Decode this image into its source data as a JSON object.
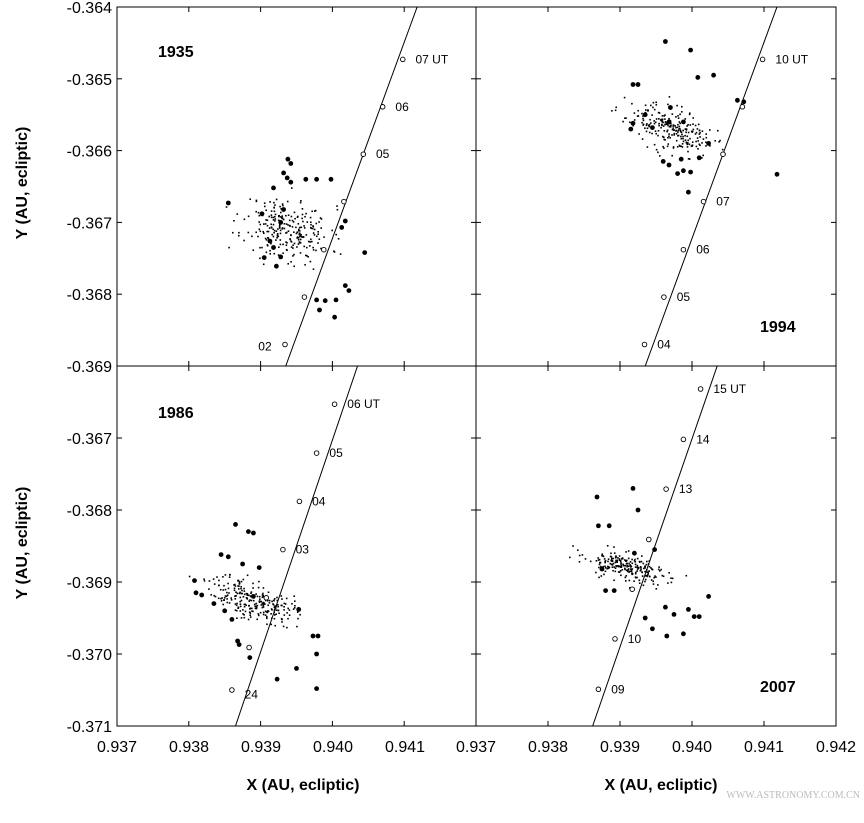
{
  "watermark": "WWW.ASTRONOMY.COM.CN",
  "x_axis": {
    "label": "X (AU, ecliptic)",
    "ticks_left": [
      "0.937",
      "0.938",
      "0.939",
      "0.940",
      "0.941"
    ],
    "ticks_right": [
      "0.937",
      "0.938",
      "0.939",
      "0.940",
      "0.941",
      "0.942"
    ]
  },
  "chart_data": [
    {
      "type": "scatter",
      "year": "1935",
      "xlim": [
        0.937,
        0.942
      ],
      "ylim": [
        -0.369,
        -0.364
      ],
      "ylabel": "Y (AU, ecliptic)",
      "yticks": [
        -0.364,
        -0.365,
        -0.366,
        -0.367,
        -0.368,
        -0.369
      ],
      "ytick_labels": [
        "-0.364",
        "-0.365",
        "-0.366",
        "-0.367",
        "-0.368",
        "-0.369"
      ],
      "track": [
        [
          0.93935,
          -0.369
        ],
        [
          0.94118,
          -0.364
        ]
      ],
      "time_marks": [
        {
          "x": 0.94098,
          "y": -0.36473,
          "label": "07 UT"
        },
        {
          "x": 0.9407,
          "y": -0.36539,
          "label": "06"
        },
        {
          "x": 0.94043,
          "y": -0.36605,
          "label": "05"
        },
        {
          "x": 0.94016,
          "y": -0.36671
        },
        {
          "x": 0.93988,
          "y": -0.36738
        },
        {
          "x": 0.93961,
          "y": -0.36804
        },
        {
          "x": 0.93934,
          "y": -0.3687,
          "label": "02"
        }
      ],
      "hour_label_dx": [
        0.00015,
        0.00015,
        0.00015,
        0,
        0,
        0,
        -0.0004
      ],
      "hour_label_dy": [
        0,
        0,
        0,
        0,
        0,
        0,
        -3e-05
      ],
      "cloud": {
        "cx": 0.93937,
        "cy": -0.3671,
        "sx": 0.0003,
        "sy": 0.00022,
        "rho": -0.2,
        "n": 260,
        "seed": 11
      },
      "particles": [
        [
          0.93855,
          -0.36673
        ],
        [
          0.93938,
          -0.36612
        ],
        [
          0.93942,
          -0.36618
        ],
        [
          0.93932,
          -0.36631
        ],
        [
          0.93937,
          -0.36638
        ],
        [
          0.93942,
          -0.36644
        ],
        [
          0.93918,
          -0.36652
        ],
        [
          0.93963,
          -0.3664
        ],
        [
          0.93978,
          -0.3664
        ],
        [
          0.93998,
          -0.3664
        ],
        [
          0.93932,
          -0.36682
        ],
        [
          0.93902,
          -0.36688
        ],
        [
          0.93928,
          -0.367
        ],
        [
          0.93913,
          -0.36726
        ],
        [
          0.93918,
          -0.36735
        ],
        [
          0.93928,
          -0.36748
        ],
        [
          0.93905,
          -0.36749
        ],
        [
          0.93922,
          -0.36761
        ],
        [
          0.94018,
          -0.36698
        ],
        [
          0.94013,
          -0.36707
        ],
        [
          0.94045,
          -0.36742
        ],
        [
          0.94018,
          -0.36788
        ],
        [
          0.94005,
          -0.36808
        ],
        [
          0.94023,
          -0.36795
        ],
        [
          0.93978,
          -0.36808
        ],
        [
          0.93982,
          -0.36822
        ],
        [
          0.94003,
          -0.36832
        ],
        [
          0.9399,
          -0.36809
        ]
      ]
    },
    {
      "type": "scatter",
      "year": "1994",
      "xlim": [
        0.937,
        0.942
      ],
      "ylim": [
        -0.369,
        -0.364
      ],
      "ylabel": "",
      "yticks": [
        -0.364,
        -0.365,
        -0.366,
        -0.367,
        -0.368,
        -0.369
      ],
      "ytick_labels": [],
      "track": [
        [
          0.93935,
          -0.369
        ],
        [
          0.94118,
          -0.364
        ]
      ],
      "time_marks": [
        {
          "x": 0.94098,
          "y": -0.36473,
          "label": "10 UT"
        },
        {
          "x": 0.9407,
          "y": -0.36539
        },
        {
          "x": 0.94043,
          "y": -0.36605
        },
        {
          "x": 0.94016,
          "y": -0.36671,
          "label": "07"
        },
        {
          "x": 0.93988,
          "y": -0.36738,
          "label": "06"
        },
        {
          "x": 0.93961,
          "y": -0.36804,
          "label": "05"
        },
        {
          "x": 0.93934,
          "y": -0.3687,
          "label": "04"
        }
      ],
      "hour_label_dx": [
        0.00015,
        0,
        0,
        0.00015,
        0.00015,
        0.00015,
        0.00015
      ],
      "hour_label_dy": [
        0,
        0,
        0,
        0,
        0,
        0,
        0
      ],
      "cloud": {
        "cx": 0.9397,
        "cy": -0.3657,
        "sx": 0.0003,
        "sy": 0.00018,
        "rho": -0.6,
        "n": 240,
        "seed": 23
      },
      "particles": [
        [
          0.93918,
          -0.36508
        ],
        [
          0.93925,
          -0.36508
        ],
        [
          0.93935,
          -0.3655
        ],
        [
          0.93945,
          -0.36568
        ],
        [
          0.93918,
          -0.36562
        ],
        [
          0.93915,
          -0.3657
        ],
        [
          0.9397,
          -0.3654
        ],
        [
          0.93968,
          -0.3656
        ],
        [
          0.93988,
          -0.3656
        ],
        [
          0.93963,
          -0.36448
        ],
        [
          0.93998,
          -0.3646
        ],
        [
          0.9403,
          -0.36495
        ],
        [
          0.94008,
          -0.36498
        ],
        [
          0.94063,
          -0.3653
        ],
        [
          0.94072,
          -0.36532
        ],
        [
          0.9401,
          -0.3661
        ],
        [
          0.94023,
          -0.3659
        ],
        [
          0.93985,
          -0.36612
        ],
        [
          0.9396,
          -0.36615
        ],
        [
          0.93968,
          -0.3662
        ],
        [
          0.93998,
          -0.3663
        ],
        [
          0.9398,
          -0.36632
        ],
        [
          0.93995,
          -0.36658
        ],
        [
          0.93988,
          -0.36628
        ],
        [
          0.94118,
          -0.36633
        ]
      ]
    },
    {
      "type": "scatter",
      "year": "1986",
      "xlim": [
        0.937,
        0.942
      ],
      "ylim": [
        -0.371,
        -0.366
      ],
      "ylabel": "Y (AU, ecliptic)",
      "yticks": [
        -0.367,
        -0.368,
        -0.369,
        -0.37,
        -0.371
      ],
      "ytick_labels": [
        "-0.367",
        "-0.368",
        "-0.369",
        "-0.370",
        "-0.371"
      ],
      "track": [
        [
          0.93865,
          -0.371
        ],
        [
          0.94035,
          -0.366
        ]
      ],
      "time_marks": [
        {
          "x": 0.94003,
          "y": -0.36653,
          "label": "06 UT"
        },
        {
          "x": 0.93978,
          "y": -0.36721,
          "label": "05"
        },
        {
          "x": 0.93954,
          "y": -0.36788,
          "label": "04"
        },
        {
          "x": 0.93931,
          "y": -0.36855,
          "label": "03"
        },
        {
          "x": 0.93908,
          "y": -0.36922
        },
        {
          "x": 0.93884,
          "y": -0.36991
        },
        {
          "x": 0.9386,
          "y": -0.3705,
          "label": "24"
        }
      ],
      "hour_label_dx": [
        0.00015,
        0.00015,
        0.00015,
        0.00015,
        0,
        0,
        0.00015
      ],
      "hour_label_dy": [
        0,
        0,
        0,
        0,
        0,
        0,
        -6e-05
      ],
      "cloud": {
        "cx": 0.93888,
        "cy": -0.36925,
        "sx": 0.00028,
        "sy": 0.00016,
        "rho": -0.55,
        "n": 250,
        "seed": 37
      },
      "particles": [
        [
          0.93865,
          -0.3682
        ],
        [
          0.93845,
          -0.36862
        ],
        [
          0.93855,
          -0.36865
        ],
        [
          0.93883,
          -0.3683
        ],
        [
          0.9389,
          -0.36832
        ],
        [
          0.93875,
          -0.36875
        ],
        [
          0.93898,
          -0.3688
        ],
        [
          0.93808,
          -0.36898
        ],
        [
          0.9381,
          -0.36915
        ],
        [
          0.93818,
          -0.36918
        ],
        [
          0.93835,
          -0.3693
        ],
        [
          0.9385,
          -0.3694
        ],
        [
          0.9386,
          -0.36952
        ],
        [
          0.93868,
          -0.36982
        ],
        [
          0.9387,
          -0.36987
        ],
        [
          0.9389,
          -0.3692
        ],
        [
          0.93953,
          -0.36938
        ],
        [
          0.93973,
          -0.36975
        ],
        [
          0.9398,
          -0.36975
        ],
        [
          0.9395,
          -0.3702
        ],
        [
          0.93923,
          -0.37035
        ],
        [
          0.93978,
          -0.37
        ],
        [
          0.93978,
          -0.37048
        ],
        [
          0.93885,
          -0.37005
        ]
      ]
    },
    {
      "type": "scatter",
      "year": "2007",
      "xlim": [
        0.937,
        0.942
      ],
      "ylim": [
        -0.371,
        -0.366
      ],
      "ylabel": "",
      "yticks": [
        -0.367,
        -0.368,
        -0.369,
        -0.37,
        -0.371
      ],
      "ytick_labels": [],
      "track": [
        [
          0.93862,
          -0.371
        ],
        [
          0.94035,
          -0.366
        ]
      ],
      "time_marks": [
        {
          "x": 0.94012,
          "y": -0.36632,
          "label": "15 UT"
        },
        {
          "x": 0.93988,
          "y": -0.36702,
          "label": "14"
        },
        {
          "x": 0.93964,
          "y": -0.36771,
          "label": "13"
        },
        {
          "x": 0.9394,
          "y": -0.36841
        },
        {
          "x": 0.93917,
          "y": -0.3691
        },
        {
          "x": 0.93893,
          "y": -0.36979,
          "label": "10"
        },
        {
          "x": 0.9387,
          "y": -0.37049,
          "label": "09"
        }
      ],
      "hour_label_dx": [
        0.00015,
        0.00015,
        0.00015,
        0,
        0,
        0.00015,
        0.00015
      ],
      "hour_label_dy": [
        0,
        0,
        0,
        0,
        0,
        0,
        0
      ],
      "cloud": {
        "cx": 0.9391,
        "cy": -0.3688,
        "sx": 0.0003,
        "sy": 0.00012,
        "rho": -0.6,
        "n": 230,
        "seed": 53
      },
      "particles": [
        [
          0.93868,
          -0.36782
        ],
        [
          0.93918,
          -0.3677
        ],
        [
          0.93885,
          -0.36822
        ],
        [
          0.9387,
          -0.36822
        ],
        [
          0.93925,
          -0.368
        ],
        [
          0.93948,
          -0.36855
        ],
        [
          0.9392,
          -0.3686
        ],
        [
          0.93875,
          -0.36882
        ],
        [
          0.9388,
          -0.36912
        ],
        [
          0.93892,
          -0.36912
        ],
        [
          0.93963,
          -0.36935
        ],
        [
          0.93935,
          -0.3695
        ],
        [
          0.93945,
          -0.36965
        ],
        [
          0.93975,
          -0.36945
        ],
        [
          0.93995,
          -0.36938
        ],
        [
          0.9401,
          -0.36948
        ],
        [
          0.94023,
          -0.3692
        ],
        [
          0.93988,
          -0.36972
        ],
        [
          0.94003,
          -0.36948
        ],
        [
          0.93965,
          -0.36975
        ]
      ]
    }
  ]
}
